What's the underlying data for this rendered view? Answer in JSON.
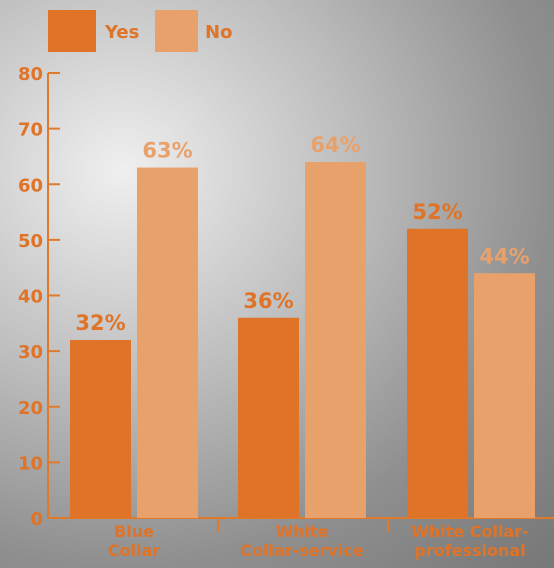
{
  "colors": {
    "axis": "#e07a2a",
    "yes": "#df7327",
    "no": "#e9a16c",
    "text": "#df7327"
  },
  "chart_data": {
    "type": "bar",
    "title": "",
    "xlabel": "",
    "ylabel": "",
    "categories": [
      "Blue Collar",
      "White Collar-service",
      "White Collar-professional"
    ],
    "category_lines": [
      [
        "Blue",
        "Collar"
      ],
      [
        "White",
        "Collar-service"
      ],
      [
        "White Collar-",
        "professional"
      ]
    ],
    "series": [
      {
        "name": "Yes",
        "values": [
          32,
          36,
          52
        ],
        "labels": [
          "32%",
          "36%",
          "52%"
        ]
      },
      {
        "name": "No",
        "values": [
          63,
          64,
          44
        ],
        "labels": [
          "63%",
          "64%",
          "44%"
        ]
      }
    ],
    "ylim": [
      0,
      80
    ],
    "yticks": [
      0,
      10,
      20,
      30,
      40,
      50,
      60,
      70,
      80
    ],
    "legend": {
      "position": "top-left",
      "items": [
        "Yes",
        "No"
      ]
    },
    "grid": false
  }
}
